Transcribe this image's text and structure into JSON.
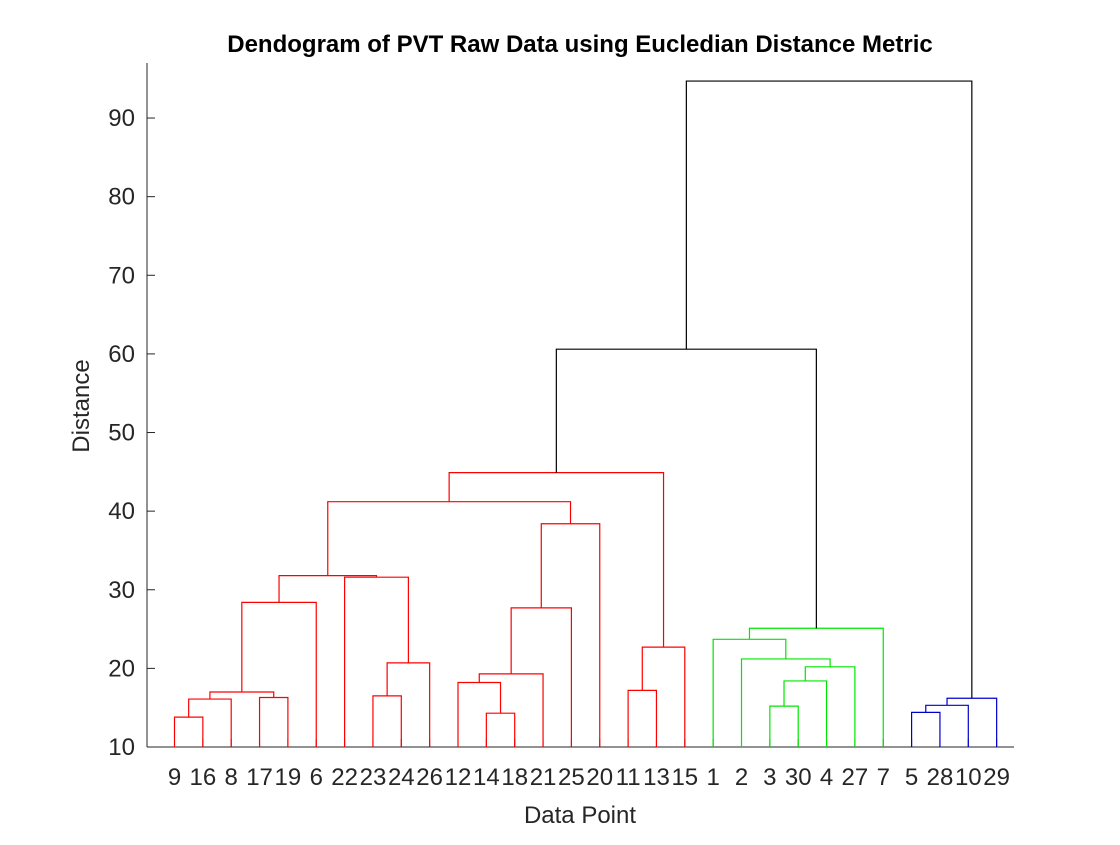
{
  "chart_data": {
    "type": "dendrogram",
    "title": "Dendogram of PVT Raw Data using Eucledian Distance Metric",
    "xlabel": "Data Point",
    "ylabel": "Distance",
    "ylim": [
      10,
      97
    ],
    "yticks": [
      10,
      20,
      30,
      40,
      50,
      60,
      70,
      80,
      90
    ],
    "leaf_order": [
      "9",
      "16",
      "8",
      "17",
      "19",
      "6",
      "22",
      "23",
      "24",
      "26",
      "12",
      "14",
      "18",
      "21",
      "25",
      "20",
      "11",
      "13",
      "15",
      "1",
      "2",
      "3",
      "30",
      "4",
      "27",
      "7",
      "5",
      "28",
      "10",
      "29"
    ],
    "colors": {
      "red": "#ff0000",
      "green": "#00e600",
      "blue": "#0000cc",
      "black": "#000000"
    },
    "links": [
      {
        "id": "m1",
        "a": "L:9",
        "b": "L:16",
        "h": 13.8,
        "color": "red"
      },
      {
        "id": "m2",
        "a": "m1",
        "b": "L:8",
        "h": 16.1,
        "color": "red"
      },
      {
        "id": "m3",
        "a": "L:17",
        "b": "L:19",
        "h": 16.3,
        "color": "red"
      },
      {
        "id": "m4",
        "a": "m2",
        "b": "m3",
        "h": 17.0,
        "color": "red"
      },
      {
        "id": "m5",
        "a": "m4",
        "b": "L:6",
        "h": 28.4,
        "color": "red"
      },
      {
        "id": "m6",
        "a": "L:23",
        "b": "L:24",
        "h": 16.5,
        "color": "red"
      },
      {
        "id": "m7",
        "a": "m6",
        "b": "L:26",
        "h": 20.7,
        "color": "red"
      },
      {
        "id": "m8",
        "a": "L:22",
        "b": "m7",
        "h": 31.6,
        "color": "red"
      },
      {
        "id": "m9",
        "a": "m5",
        "b": "m8",
        "h": 31.8,
        "color": "red"
      },
      {
        "id": "m10",
        "a": "L:14",
        "b": "L:18",
        "h": 14.3,
        "color": "red"
      },
      {
        "id": "m11",
        "a": "L:12",
        "b": "m10",
        "h": 18.2,
        "color": "red"
      },
      {
        "id": "m12",
        "a": "m11",
        "b": "L:21",
        "h": 19.3,
        "color": "red"
      },
      {
        "id": "m13",
        "a": "m12",
        "b": "L:25",
        "h": 27.7,
        "color": "red"
      },
      {
        "id": "m14",
        "a": "m13",
        "b": "L:20",
        "h": 38.4,
        "color": "red"
      },
      {
        "id": "m15",
        "a": "m9",
        "b": "m14",
        "h": 41.2,
        "color": "red"
      },
      {
        "id": "m16",
        "a": "L:11",
        "b": "L:13",
        "h": 17.2,
        "color": "red"
      },
      {
        "id": "m17",
        "a": "m16",
        "b": "L:15",
        "h": 22.7,
        "color": "red"
      },
      {
        "id": "m18",
        "a": "m15",
        "b": "m17",
        "h": 44.9,
        "color": "red"
      },
      {
        "id": "m19",
        "a": "L:3",
        "b": "L:30",
        "h": 15.2,
        "color": "green"
      },
      {
        "id": "m20",
        "a": "m19",
        "b": "L:4",
        "h": 18.4,
        "color": "green"
      },
      {
        "id": "m21",
        "a": "m20",
        "b": "L:27",
        "h": 20.2,
        "color": "green"
      },
      {
        "id": "m22",
        "a": "L:2",
        "b": "m21",
        "h": 21.2,
        "color": "green"
      },
      {
        "id": "m23",
        "a": "L:1",
        "b": "m22",
        "h": 23.7,
        "color": "green"
      },
      {
        "id": "m24",
        "a": "m23",
        "b": "L:7",
        "h": 25.1,
        "color": "green"
      },
      {
        "id": "m25",
        "a": "m18",
        "b": "m24",
        "h": 60.6,
        "color": "black"
      },
      {
        "id": "m26",
        "a": "L:5",
        "b": "L:28",
        "h": 14.4,
        "color": "blue"
      },
      {
        "id": "m27",
        "a": "m26",
        "b": "L:10",
        "h": 15.3,
        "color": "blue"
      },
      {
        "id": "m28",
        "a": "m27",
        "b": "L:29",
        "h": 16.2,
        "color": "blue"
      },
      {
        "id": "m29",
        "a": "m25",
        "b": "m28",
        "h": 94.7,
        "color": "black"
      }
    ]
  }
}
